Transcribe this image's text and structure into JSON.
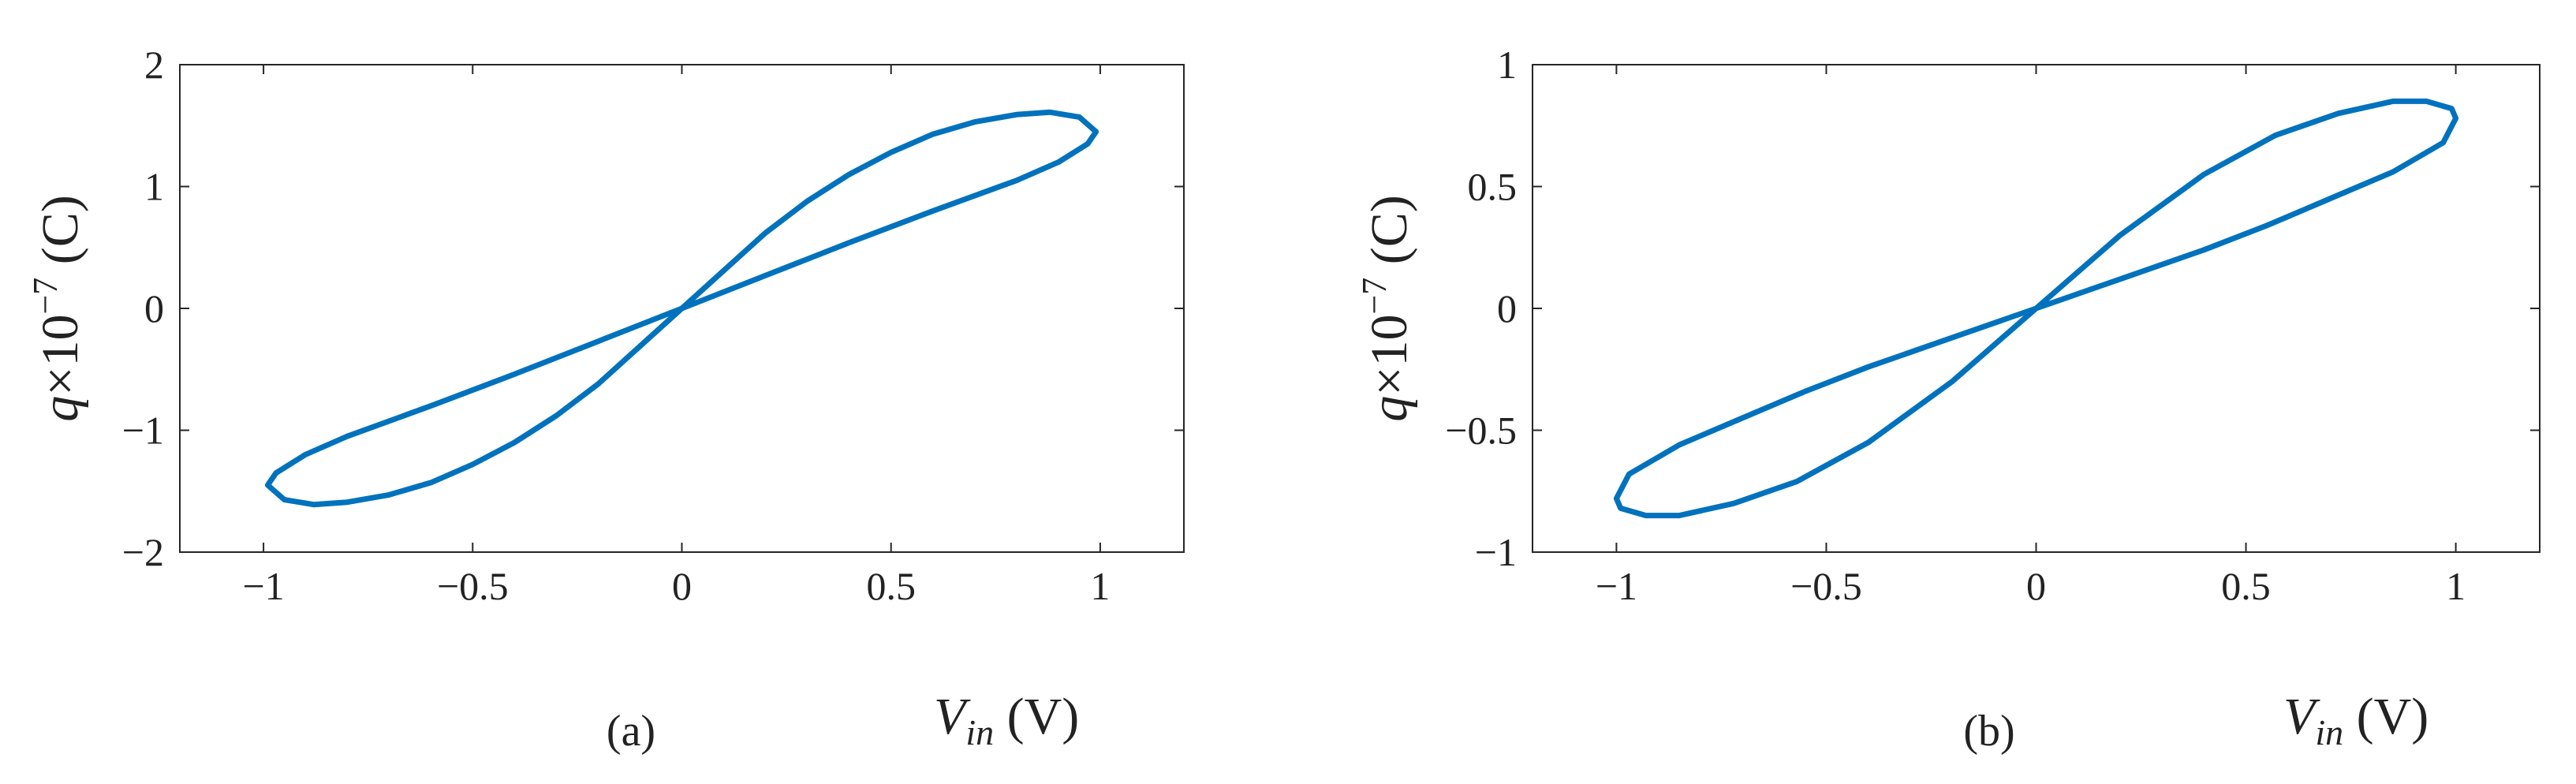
{
  "colors": {
    "series": "#0072BD",
    "axis": "#262626",
    "background": "#ffffff"
  },
  "chart_data": [
    {
      "type": "line",
      "panel_label": "(a)",
      "xlabel": {
        "main": "V",
        "sub": "in",
        "unit": " (V)"
      },
      "ylabel": {
        "main": "q",
        "mid": "×10",
        "sup": "−7",
        "unit": " (C)"
      },
      "xlim": [
        -1.2,
        1.2
      ],
      "ylim": [
        -2,
        2
      ],
      "xticks": [
        -1,
        -0.5,
        0,
        0.5,
        1
      ],
      "xtick_labels": [
        "−1",
        "−0.5",
        "0",
        "0.5",
        "1"
      ],
      "yticks": [
        -2,
        -1,
        0,
        1,
        2
      ],
      "ytick_labels": [
        "−2",
        "−1",
        "0",
        "1",
        "2"
      ],
      "grid": false,
      "series": [
        {
          "x": [
            0,
            0.1,
            0.2,
            0.3,
            0.4,
            0.5,
            0.6,
            0.7,
            0.8,
            0.88,
            0.95,
            0.99,
            0.97,
            0.9,
            0.8,
            0.6,
            0.4,
            0.2,
            0,
            -0.1,
            -0.2,
            -0.3,
            -0.4,
            -0.5,
            -0.6,
            -0.7,
            -0.8,
            -0.88,
            -0.95,
            -0.99,
            -0.97,
            -0.9,
            -0.8,
            -0.6,
            -0.4,
            -0.2,
            0
          ],
          "y": [
            0,
            0.31,
            0.62,
            0.88,
            1.1,
            1.28,
            1.43,
            1.53,
            1.59,
            1.61,
            1.57,
            1.45,
            1.35,
            1.2,
            1.05,
            0.8,
            0.54,
            0.27,
            0,
            -0.31,
            -0.62,
            -0.88,
            -1.1,
            -1.28,
            -1.43,
            -1.53,
            -1.59,
            -1.61,
            -1.57,
            -1.45,
            -1.35,
            -1.2,
            -1.05,
            -0.8,
            -0.54,
            -0.27,
            0
          ]
        }
      ]
    },
    {
      "type": "line",
      "panel_label": "(b)",
      "xlabel": {
        "main": "V",
        "sub": "in",
        "unit": " (V)"
      },
      "ylabel": {
        "main": "q",
        "mid": "×10",
        "sup": "−7",
        "unit": " (C)"
      },
      "xlim": [
        -1.2,
        1.2
      ],
      "ylim": [
        -1,
        1
      ],
      "xticks": [
        -1,
        -0.5,
        0,
        0.5,
        1
      ],
      "xtick_labels": [
        "−1",
        "−0.5",
        "0",
        "0.5",
        "1"
      ],
      "yticks": [
        -1,
        -0.5,
        0,
        0.5,
        1
      ],
      "ytick_labels": [
        "−1",
        "−0.5",
        "0",
        "0.5",
        "1"
      ],
      "grid": false,
      "series": [
        {
          "x": [
            0,
            0.2,
            0.4,
            0.57,
            0.72,
            0.85,
            0.93,
            0.99,
            1.0,
            0.97,
            0.85,
            0.7,
            0.55,
            0.4,
            0.2,
            0,
            -0.2,
            -0.4,
            -0.57,
            -0.72,
            -0.85,
            -0.93,
            -0.99,
            -1.0,
            -0.97,
            -0.85,
            -0.7,
            -0.55,
            -0.4,
            -0.2,
            0
          ],
          "y": [
            0,
            0.3,
            0.55,
            0.71,
            0.8,
            0.85,
            0.85,
            0.82,
            0.78,
            0.68,
            0.56,
            0.45,
            0.34,
            0.24,
            0.12,
            0,
            -0.3,
            -0.55,
            -0.71,
            -0.8,
            -0.85,
            -0.85,
            -0.82,
            -0.78,
            -0.68,
            -0.56,
            -0.45,
            -0.34,
            -0.24,
            -0.12,
            0
          ]
        }
      ]
    }
  ]
}
